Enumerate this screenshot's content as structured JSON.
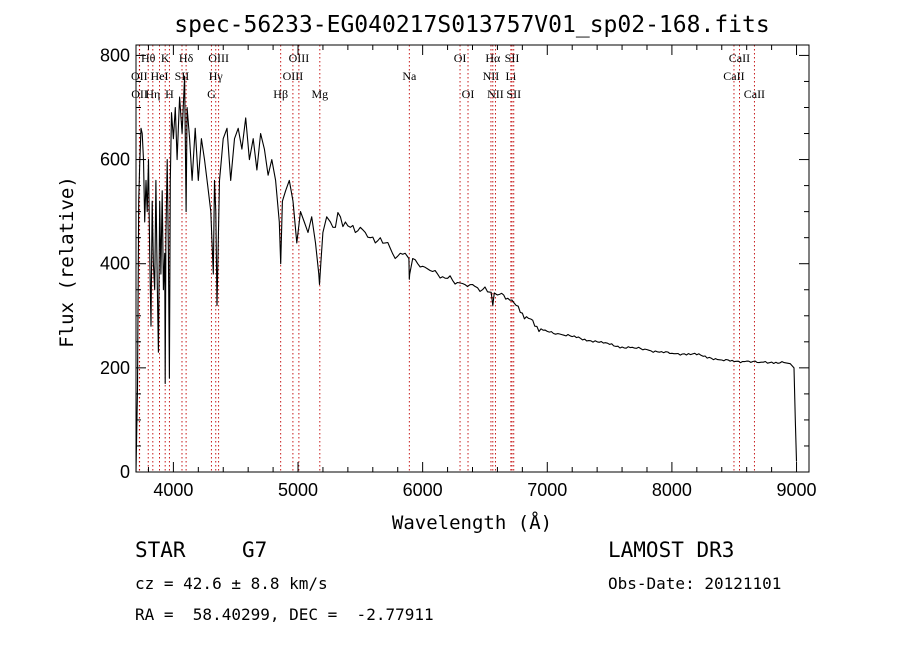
{
  "chart_data": {
    "type": "line",
    "title": "spec-56233-EG040217S013757V01_sp02-168.fits",
    "xlabel": "Wavelength (Å)",
    "ylabel": "Flux (relative)",
    "xlim": [
      3700,
      9100
    ],
    "ylim": [
      0,
      820
    ],
    "x_ticks": [
      4000,
      5000,
      6000,
      7000,
      8000,
      9000
    ],
    "y_ticks": [
      0,
      200,
      400,
      600,
      800
    ],
    "x_tick_labels": [
      "4000",
      "5000",
      "6000",
      "7000",
      "8000",
      "9000"
    ],
    "y_tick_labels": [
      "0",
      "200",
      "400",
      "600",
      "800"
    ],
    "series": [
      {
        "name": "Flux",
        "x": [
          3700,
          3712,
          3722,
          3730,
          3740,
          3750,
          3760,
          3770,
          3780,
          3790,
          3800,
          3810,
          3820,
          3830,
          3840,
          3850,
          3860,
          3870,
          3880,
          3890,
          3900,
          3910,
          3920,
          3930,
          3934,
          3940,
          3950,
          3960,
          3968,
          3975,
          3985,
          4000,
          4015,
          4030,
          4050,
          4070,
          4090,
          4102,
          4110,
          4130,
          4150,
          4175,
          4200,
          4225,
          4250,
          4275,
          4300,
          4320,
          4330,
          4340,
          4350,
          4370,
          4385,
          4400,
          4430,
          4460,
          4490,
          4520,
          4550,
          4580,
          4610,
          4640,
          4670,
          4700,
          4730,
          4760,
          4790,
          4820,
          4850,
          4861,
          4875,
          4900,
          4930,
          4960,
          4990,
          5020,
          5050,
          5080,
          5110,
          5140,
          5167,
          5172,
          5183,
          5200,
          5230,
          5260,
          5300,
          5340,
          5380,
          5420,
          5460,
          5500,
          5540,
          5580,
          5620,
          5660,
          5700,
          5740,
          5780,
          5820,
          5860,
          5890,
          5893,
          5896,
          5920,
          5960,
          6000,
          6040,
          6080,
          6120,
          6160,
          6200,
          6240,
          6280,
          6320,
          6360,
          6400,
          6440,
          6480,
          6520,
          6550,
          6563,
          6575,
          6600,
          6650,
          6700,
          6750,
          6800,
          6850,
          6900,
          6950,
          7000,
          7100,
          7200,
          7300,
          7400,
          7500,
          7600,
          7700,
          7800,
          7900,
          8000,
          8100,
          8200,
          8300,
          8400,
          8500,
          8600,
          8700,
          8800,
          8900,
          8950,
          8980,
          8990,
          9000
        ],
        "y": [
          0,
          160,
          520,
          590,
          660,
          650,
          600,
          480,
          560,
          500,
          600,
          420,
          280,
          520,
          400,
          350,
          560,
          370,
          230,
          520,
          380,
          540,
          350,
          420,
          170,
          450,
          600,
          420,
          180,
          560,
          690,
          640,
          700,
          600,
          720,
          650,
          760,
          500,
          700,
          640,
          560,
          660,
          560,
          640,
          600,
          550,
          500,
          380,
          560,
          500,
          320,
          560,
          600,
          640,
          660,
          560,
          640,
          660,
          620,
          680,
          600,
          640,
          580,
          650,
          620,
          570,
          600,
          560,
          480,
          400,
          520,
          540,
          560,
          520,
          440,
          500,
          480,
          460,
          490,
          440,
          380,
          360,
          400,
          460,
          490,
          480,
          470,
          490,
          480,
          470,
          460,
          470,
          460,
          450,
          440,
          450,
          440,
          430,
          410,
          420,
          420,
          410,
          370,
          380,
          410,
          400,
          395,
          390,
          385,
          380,
          375,
          372,
          368,
          364,
          362,
          356,
          360,
          354,
          350,
          346,
          345,
          320,
          344,
          340,
          340,
          330,
          320,
          305,
          295,
          280,
          275,
          270,
          265,
          260,
          255,
          250,
          245,
          240,
          238,
          235,
          230,
          228,
          227,
          225,
          220,
          215,
          212,
          213,
          210,
          211,
          210,
          208,
          200,
          100,
          20
        ]
      }
    ],
    "line_markers": [
      {
        "label": "Hθ",
        "wavelength": 3798,
        "row": 1
      },
      {
        "label": "OII",
        "wavelength": 3727,
        "row": 2
      },
      {
        "label": "OII",
        "wavelength": 3729,
        "row": 3
      },
      {
        "label": "K",
        "wavelength": 3934,
        "row": 1
      },
      {
        "label": "HeI",
        "wavelength": 3889,
        "row": 2
      },
      {
        "label": "Hη",
        "wavelength": 3835,
        "row": 3
      },
      {
        "label": "Hδ",
        "wavelength": 4102,
        "row": 1
      },
      {
        "label": "SII",
        "wavelength": 4069,
        "row": 2
      },
      {
        "label": "H",
        "wavelength": 3968,
        "row": 3
      },
      {
        "label": "OIII",
        "wavelength": 4363,
        "row": 1
      },
      {
        "label": "Hγ",
        "wavelength": 4340,
        "row": 2
      },
      {
        "label": "G",
        "wavelength": 4305,
        "row": 3
      },
      {
        "label": "OIII",
        "wavelength": 5007,
        "row": 1
      },
      {
        "label": "OIII",
        "wavelength": 4959,
        "row": 2
      },
      {
        "label": "Hβ",
        "wavelength": 4861,
        "row": 3
      },
      {
        "label": "Mg",
        "wavelength": 5175,
        "row": 3
      },
      {
        "label": "Na",
        "wavelength": 5893,
        "row": 2
      },
      {
        "label": "OI",
        "wavelength": 6300,
        "row": 1
      },
      {
        "label": "OI",
        "wavelength": 6364,
        "row": 3
      },
      {
        "label": "Hα",
        "wavelength": 6563,
        "row": 1
      },
      {
        "label": "SII",
        "wavelength": 6717,
        "row": 1
      },
      {
        "label": "NII",
        "wavelength": 6548,
        "row": 2
      },
      {
        "label": "Li",
        "wavelength": 6708,
        "row": 2
      },
      {
        "label": "NII",
        "wavelength": 6584,
        "row": 3
      },
      {
        "label": "SII",
        "wavelength": 6731,
        "row": 3
      },
      {
        "label": "CaII",
        "wavelength": 8542,
        "row": 1
      },
      {
        "label": "CaII",
        "wavelength": 8498,
        "row": 2
      },
      {
        "label": "CaII",
        "wavelength": 8662,
        "row": 3
      }
    ]
  },
  "info": {
    "class": "STAR",
    "subclass": "G7",
    "survey": "LAMOST DR3",
    "redshift": "cz = 42.6 ± 8.8 km/s",
    "obs_date": "Obs-Date: 20121101",
    "coords": "RA =  58.40299, DEC =  -2.77911"
  }
}
